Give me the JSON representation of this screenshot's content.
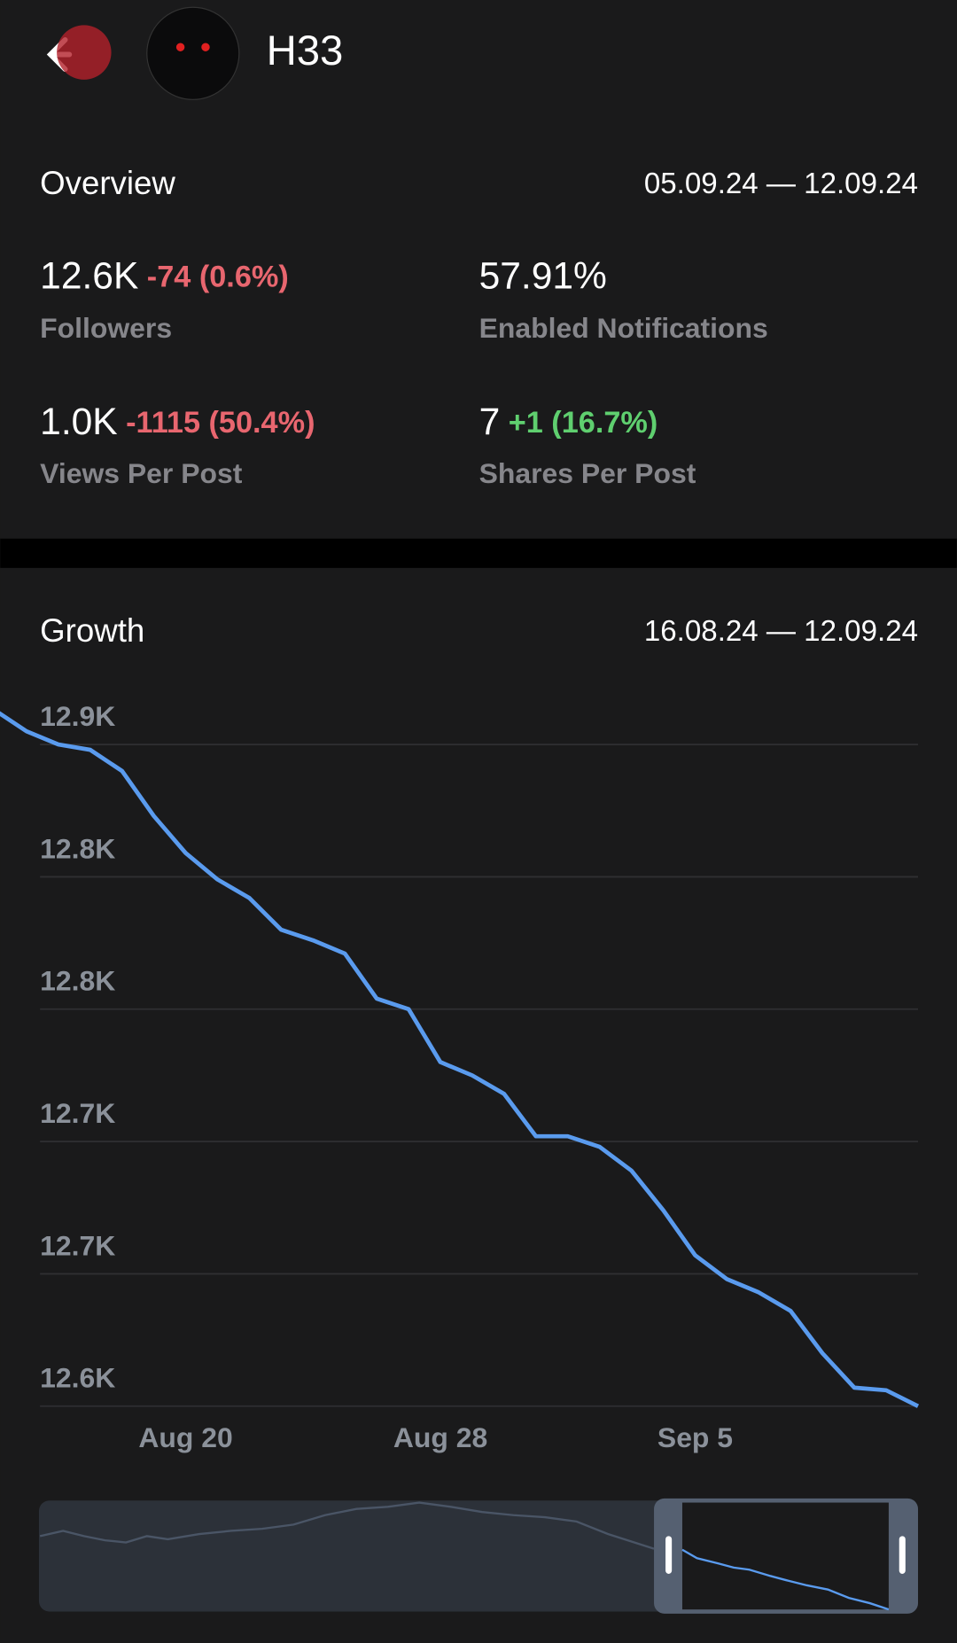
{
  "header": {
    "title": "H33"
  },
  "overview": {
    "title": "Overview",
    "date_range": "05.09.24 — 12.09.24",
    "stats": [
      {
        "value": "12.6K",
        "change": "-74 (0.6%)",
        "change_color": "#e8666f",
        "label": "Followers"
      },
      {
        "value": "57.91%",
        "label": "Enabled Notifications"
      },
      {
        "value": "1.0K",
        "change": "-1115 (50.4%)",
        "change_color": "#e8666f",
        "label": "Views Per Post"
      },
      {
        "value": "7",
        "change": "+1 (16.7%)",
        "change_color": "#5fcf6f",
        "label": "Shares Per Post"
      }
    ]
  },
  "chart_data": {
    "type": "line",
    "title": "Growth",
    "subtitle": "16.08.24 — 12.09.24",
    "categories": [
      null,
      null,
      null,
      null,
      null,
      null,
      "Aug 20",
      null,
      null,
      null,
      null,
      null,
      null,
      null,
      "Aug 28",
      null,
      null,
      null,
      null,
      null,
      null,
      null,
      "Sep 5",
      null,
      null,
      null,
      null,
      null,
      null,
      null
    ],
    "values": [
      12863,
      12855,
      12850,
      12848,
      12840,
      12823,
      12809,
      12799,
      12792,
      12780,
      12776,
      12771,
      12754,
      12750,
      12730,
      12725,
      12718,
      12702,
      12702,
      12698,
      12689,
      12674,
      12657,
      12648,
      12643,
      12636,
      12620,
      12607,
      12606,
      12600
    ],
    "color": "#5a9bee",
    "ylim": [
      12600,
      12870
    ],
    "yticks": [
      {
        "value": 12600,
        "label": "12.6K"
      },
      {
        "value": 12650,
        "label": "12.7K"
      },
      {
        "value": 12700,
        "label": "12.7K"
      },
      {
        "value": 12750,
        "label": "12.8K"
      },
      {
        "value": 12800,
        "label": "12.8K"
      },
      {
        "value": 12850,
        "label": "12.9K"
      }
    ],
    "grid": true
  }
}
